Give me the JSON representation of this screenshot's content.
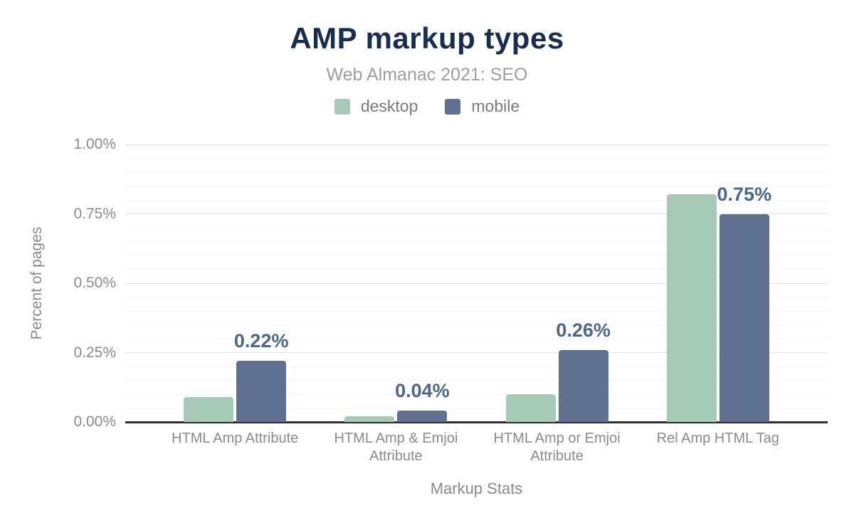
{
  "figure": {
    "title": "AMP markup types",
    "subtitle": "Web Almanac 2021: SEO"
  },
  "legend": {
    "items": [
      {
        "label": "desktop",
        "color": "#a6cab7"
      },
      {
        "label": "mobile",
        "color": "#60708f"
      }
    ]
  },
  "chart_data": {
    "type": "bar",
    "title": "AMP markup types",
    "subtitle": "Web Almanac 2021: SEO",
    "categories": [
      "HTML Amp Attribute",
      "HTML Amp & Emjoi Attribute",
      "HTML Amp or Emjoi Attribute",
      "Rel Amp HTML Tag"
    ],
    "series": [
      {
        "name": "desktop",
        "color": "#a6cab7",
        "values": [
          0.09,
          0.02,
          0.1,
          0.82
        ]
      },
      {
        "name": "mobile",
        "color": "#60708f",
        "values": [
          0.22,
          0.04,
          0.26,
          0.75
        ],
        "data_labels": [
          "0.22%",
          "0.04%",
          "0.26%",
          "0.75%"
        ]
      }
    ],
    "xlabel": "Markup Stats",
    "ylabel": "Percent of pages",
    "ylim": [
      0,
      1.0
    ],
    "yticks": [
      {
        "value": 0,
        "label": "0.00%"
      },
      {
        "value": 0.25,
        "label": "0.25%"
      },
      {
        "value": 0.5,
        "label": "0.50%"
      },
      {
        "value": 0.75,
        "label": "0.75%"
      },
      {
        "value": 1.0,
        "label": "1.00%"
      }
    ],
    "grid": {
      "minor_step": 0.05,
      "major_step": 0.25,
      "minor_color": "#f6f6f6",
      "major_color": "#e3e3e3"
    },
    "legend_position": "top"
  },
  "colors": {
    "background": "#ffffff",
    "title": "#1b2d4e",
    "subtitle": "#9e9e9e",
    "legend_text": "#7b7b7b",
    "axis_text": "#8b8b8b",
    "data_label": "#4d6787",
    "axis_line": "#2d2d2d"
  }
}
